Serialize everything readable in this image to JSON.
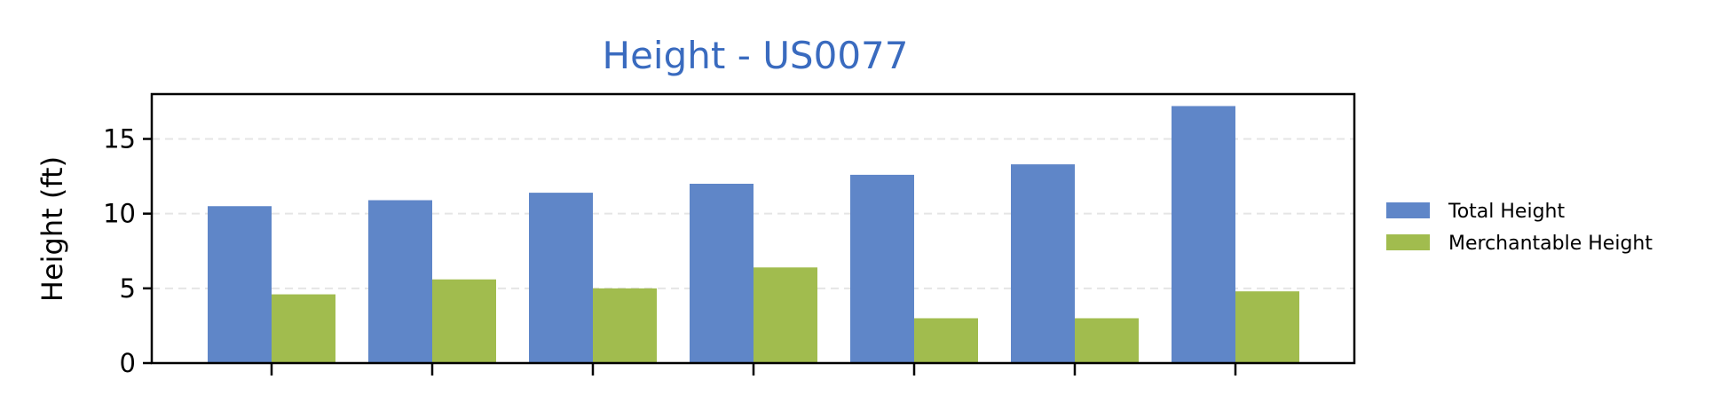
{
  "colors": {
    "total_height": "#5f86c8",
    "merchantable_height": "#a1bc4e",
    "title": "#3a6bbf",
    "grid": "#e5e5e5"
  },
  "chart_data": {
    "type": "bar",
    "title": "Height - US0077",
    "xlabel": "",
    "ylabel": "Height (ft)",
    "ylim": [
      0,
      18
    ],
    "yticks": [
      0,
      5,
      10,
      15
    ],
    "grid": "horizontal, dashed",
    "legend_position": "right",
    "categories": [
      "",
      "",
      "",
      "",
      "",
      "",
      ""
    ],
    "series": [
      {
        "name": "Total Height",
        "values": [
          10.5,
          10.9,
          11.4,
          12.0,
          12.6,
          13.3,
          17.2
        ]
      },
      {
        "name": "Merchantable Height",
        "values": [
          4.6,
          5.6,
          5.0,
          6.4,
          3.0,
          3.0,
          4.8
        ]
      }
    ]
  }
}
